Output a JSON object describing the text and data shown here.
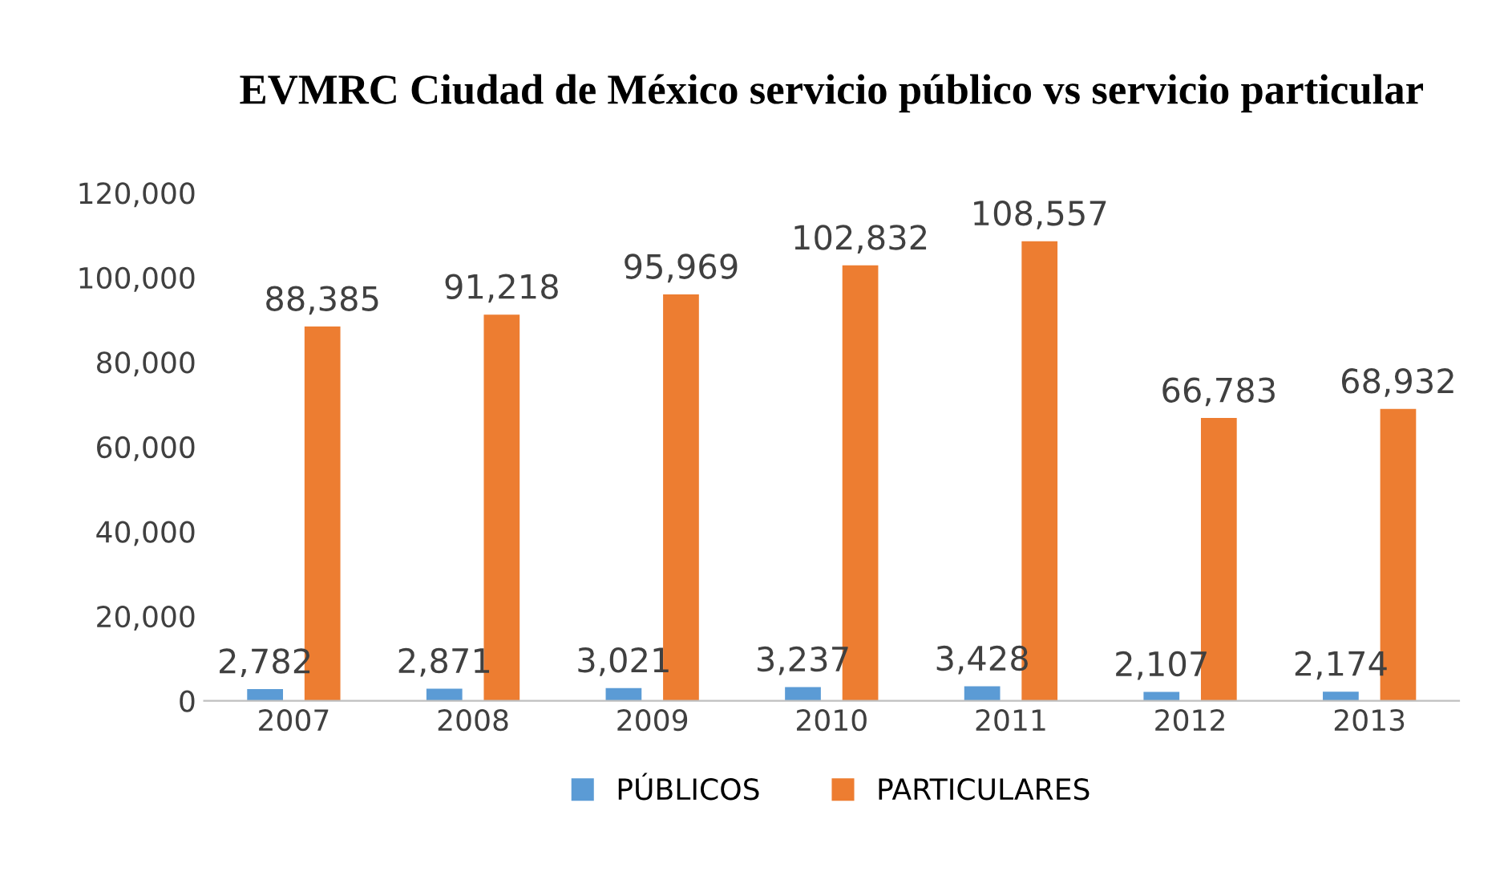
{
  "chart_data": {
    "type": "bar",
    "title": "EVMRC Ciudad de México servicio público vs servicio particular",
    "categories": [
      "2007",
      "2008",
      "2009",
      "2010",
      "2011",
      "2012",
      "2013"
    ],
    "series": [
      {
        "name": "PÚBLICOS",
        "color": "#5b9bd5",
        "values": [
          2782,
          2871,
          3021,
          3237,
          3428,
          2107,
          2174
        ],
        "value_labels": [
          "2,782",
          "2,871",
          "3,021",
          "3,237",
          "3,428",
          "2,107",
          "2,174"
        ]
      },
      {
        "name": "PARTICULARES",
        "color": "#ed7d31",
        "values": [
          88385,
          91218,
          95969,
          102832,
          108557,
          66783,
          68932
        ],
        "value_labels": [
          "88,385",
          "91,218",
          "95,969",
          "102,832",
          "108,557",
          "66,783",
          "68,932"
        ]
      }
    ],
    "ylim": [
      0,
      120000
    ],
    "yticks": [
      {
        "value": 0,
        "label": "0"
      },
      {
        "value": 20000,
        "label": "20,000"
      },
      {
        "value": 40000,
        "label": "40,000"
      },
      {
        "value": 60000,
        "label": "60,000"
      },
      {
        "value": 80000,
        "label": "80,000"
      },
      {
        "value": 100000,
        "label": "100,000"
      },
      {
        "value": 120000,
        "label": "120,000"
      }
    ],
    "grid": false,
    "legend": "bottom"
  }
}
